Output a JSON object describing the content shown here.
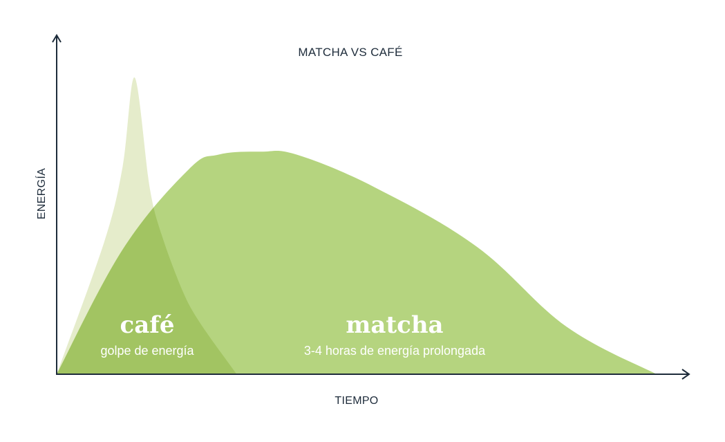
{
  "colors": {
    "axis": "#1d2b3a",
    "cafe": "#e5eccb",
    "matcha": "#b5d47f",
    "overlap": "#a2c462",
    "label_text": "#ffffff"
  },
  "chart_data": {
    "type": "area",
    "title": "MATCHA VS CAFÉ",
    "xlabel": "TIEMPO",
    "ylabel": "ENERGÍA",
    "grid": false,
    "xlim": [
      0,
      100
    ],
    "ylim": [
      0,
      100
    ],
    "series": [
      {
        "name": "café",
        "annotation": "golpe de energía",
        "x": [
          0,
          8,
          11,
          13,
          15.5,
          17.5,
          21,
          24,
          30
        ],
        "values": [
          0,
          45,
          70,
          100,
          63,
          47,
          28,
          17,
          0
        ]
      },
      {
        "name": "matcha",
        "annotation": "3-4 horas de energía prolongada",
        "x": [
          0,
          11,
          22,
          27,
          34,
          40,
          53,
          70,
          85,
          100
        ],
        "values": [
          0,
          42,
          69,
          74,
          75,
          74,
          63,
          43,
          16,
          0
        ]
      }
    ]
  }
}
